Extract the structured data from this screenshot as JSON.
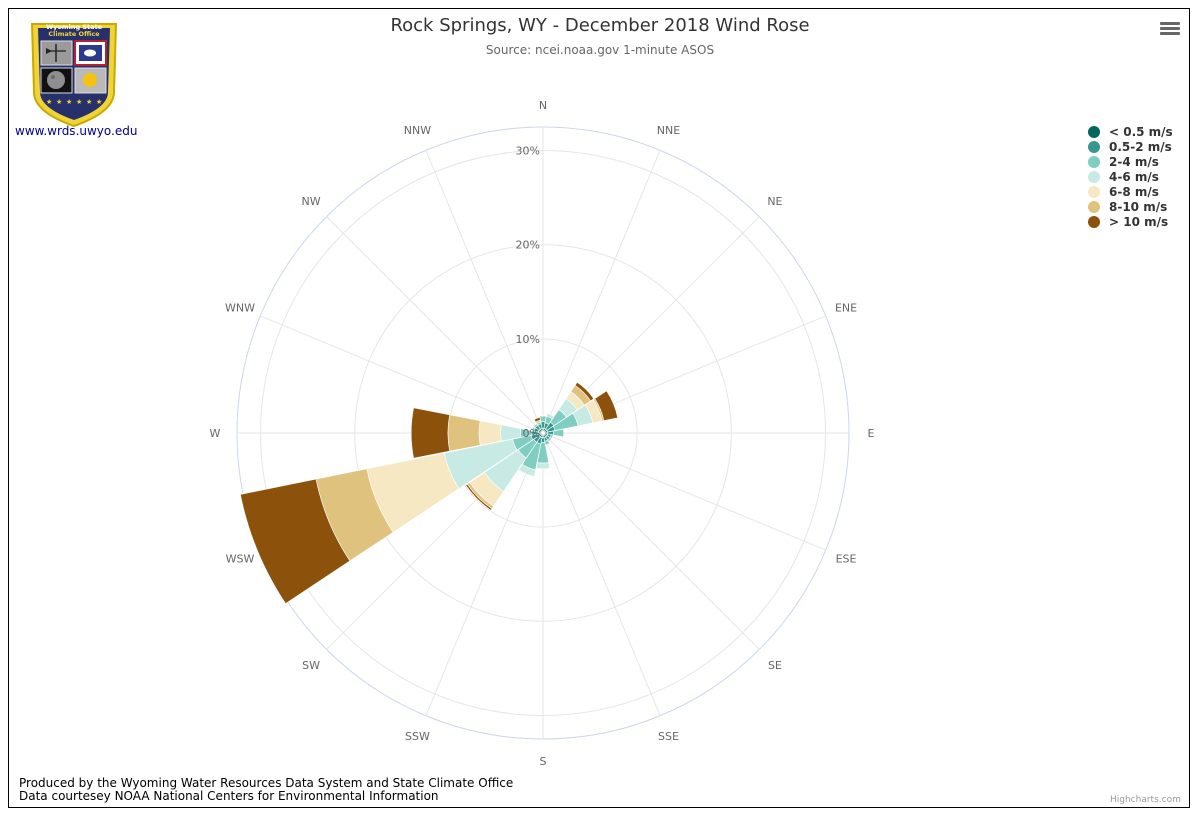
{
  "title": "Rock Springs, WY - December 2018 Wind Rose",
  "subtitle": "Source: ncei.noaa.gov 1-minute ASOS",
  "logo": {
    "top_text_1": "Wyoming State",
    "top_text_2": "Climate Office",
    "link_text": "www.wrds.uwyo.edu",
    "icons": [
      "weathervane-icon",
      "wyoming-flag-icon",
      "moon-icon",
      "sun-icon",
      "stars-icon"
    ]
  },
  "footer": {
    "line1": "Produced by the Wyoming Water Resources Data System and State Climate Office",
    "line2": "Data courtesey NOAA National Centers for Environmental Information"
  },
  "credits": "Highcharts.com",
  "menu_icon": "hamburger-menu-icon",
  "colors": {
    "ring": "#ccd6eb",
    "grid": "#e6e6e6",
    "text": "#333333",
    "axis_text": "#666666"
  },
  "chart_data": {
    "type": "windrose",
    "title": "Rock Springs, WY - December 2018 Wind Rose",
    "subtitle": "Source: ncei.noaa.gov 1-minute ASOS",
    "unit": "%",
    "stacking": "normal",
    "directions": [
      "N",
      "NNE",
      "NE",
      "ENE",
      "E",
      "ESE",
      "SE",
      "SSE",
      "S",
      "SSW",
      "SW",
      "WSW",
      "W",
      "WNW",
      "NW",
      "NNW"
    ],
    "ring_ticks": [
      0,
      10,
      20,
      30
    ],
    "ring_labels": [
      "0%",
      "10%",
      "20%",
      "30%"
    ],
    "rmax": 32.5,
    "legend_position": "top-right",
    "series": [
      {
        "name": "< 0.5 m/s",
        "color": "#01665e",
        "values": [
          0.5,
          0.5,
          0.5,
          0.5,
          0.5,
          0.5,
          0.5,
          0.5,
          0.5,
          0.5,
          0.5,
          0.5,
          0.5,
          0.5,
          0.5,
          0.5
        ]
      },
      {
        "name": "0.5-2 m/s",
        "color": "#35978f",
        "values": [
          0.7,
          0.6,
          0.9,
          0.8,
          0.6,
          0.4,
          0.4,
          0.4,
          0.5,
          0.7,
          0.7,
          0.8,
          0.7,
          0.5,
          0.5,
          0.5
        ]
      },
      {
        "name": "2-4 m/s",
        "color": "#80cdc1",
        "values": [
          0.6,
          0.7,
          1.6,
          2.5,
          1.1,
          0.2,
          0.2,
          0.4,
          2.2,
          2.8,
          2.0,
          2.0,
          1.2,
          0.2,
          0.2,
          0.2
        ]
      },
      {
        "name": "4-6 m/s",
        "color": "#c7eae5",
        "values": [
          0,
          0.3,
          1.4,
          1.6,
          0,
          0,
          0,
          0,
          0.6,
          0.7,
          4.3,
          7.4,
          2.1,
          0,
          0,
          0
        ]
      },
      {
        "name": "6-8 m/s",
        "color": "#f6e8c3",
        "values": [
          0,
          0,
          0.9,
          1.0,
          0,
          0,
          0,
          0,
          0,
          0,
          1.9,
          8.4,
          2.3,
          0,
          0,
          0
        ]
      },
      {
        "name": "8-10 m/s",
        "color": "#dfc27d",
        "values": [
          0,
          0,
          0.8,
          0.2,
          0,
          0,
          0,
          0,
          0,
          0,
          0.3,
          5.5,
          3.3,
          0,
          0,
          0.2
        ]
      },
      {
        "name": "> 10 m/s",
        "color": "#8c510a",
        "values": [
          0,
          0,
          0.4,
          1.5,
          0,
          0,
          0,
          0,
          0,
          0,
          0.2,
          8.2,
          3.9,
          0,
          0,
          0.3
        ]
      }
    ]
  }
}
